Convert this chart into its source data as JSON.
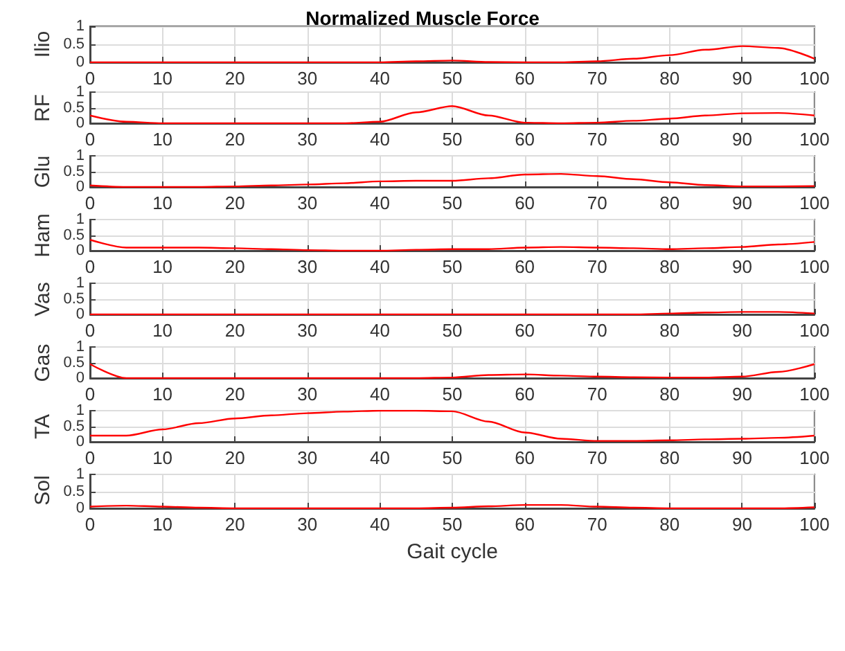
{
  "chart_data": [
    {
      "type": "line",
      "title": "Normalized Muscle Force",
      "ylabel": "Ilio",
      "color": "#ff0000",
      "grid": true,
      "xlim": [
        0,
        100
      ],
      "xticks": [
        0,
        10,
        20,
        30,
        40,
        50,
        60,
        70,
        80,
        90,
        100
      ],
      "ylim": [
        0,
        1
      ],
      "yticks": [
        0,
        0.5,
        1
      ],
      "x": [
        0,
        5,
        10,
        15,
        20,
        25,
        30,
        35,
        40,
        45,
        50,
        55,
        60,
        65,
        70,
        75,
        80,
        85,
        90,
        95,
        100
      ],
      "values": [
        0,
        0,
        0,
        0,
        0,
        0,
        0,
        0,
        0,
        0.03,
        0.05,
        0.01,
        0,
        0,
        0.03,
        0.1,
        0.2,
        0.35,
        0.45,
        0.4,
        0.1
      ]
    },
    {
      "type": "line",
      "ylabel": "RF",
      "color": "#ff0000",
      "grid": true,
      "xlim": [
        0,
        100
      ],
      "xticks": [
        0,
        10,
        20,
        30,
        40,
        50,
        60,
        70,
        80,
        90,
        100
      ],
      "ylim": [
        0,
        1
      ],
      "yticks": [
        0,
        0.5,
        1
      ],
      "x": [
        0,
        5,
        10,
        15,
        20,
        25,
        30,
        35,
        40,
        45,
        50,
        55,
        60,
        65,
        70,
        75,
        80,
        85,
        90,
        95,
        100
      ],
      "values": [
        0.25,
        0.05,
        0,
        0,
        0,
        0,
        0,
        0,
        0.05,
        0.35,
        0.55,
        0.25,
        0.02,
        0,
        0.02,
        0.08,
        0.15,
        0.25,
        0.32,
        0.33,
        0.25
      ]
    },
    {
      "type": "line",
      "ylabel": "Glu",
      "color": "#ff0000",
      "grid": true,
      "xlim": [
        0,
        100
      ],
      "xticks": [
        0,
        10,
        20,
        30,
        40,
        50,
        60,
        70,
        80,
        90,
        100
      ],
      "ylim": [
        0,
        1
      ],
      "yticks": [
        0,
        0.5,
        1
      ],
      "x": [
        0,
        5,
        10,
        15,
        20,
        25,
        30,
        35,
        40,
        45,
        50,
        55,
        60,
        65,
        70,
        75,
        80,
        85,
        90,
        95,
        100
      ],
      "values": [
        0.05,
        0,
        0,
        0,
        0.02,
        0.05,
        0.08,
        0.12,
        0.18,
        0.2,
        0.2,
        0.28,
        0.4,
        0.42,
        0.35,
        0.25,
        0.15,
        0.06,
        0.02,
        0.02,
        0.03
      ]
    },
    {
      "type": "line",
      "ylabel": "Ham",
      "color": "#ff0000",
      "grid": true,
      "xlim": [
        0,
        100
      ],
      "xticks": [
        0,
        10,
        20,
        30,
        40,
        50,
        60,
        70,
        80,
        90,
        100
      ],
      "ylim": [
        0,
        1
      ],
      "yticks": [
        0,
        0.5,
        1
      ],
      "x": [
        0,
        5,
        10,
        15,
        20,
        25,
        30,
        35,
        40,
        45,
        50,
        55,
        60,
        65,
        70,
        75,
        80,
        85,
        90,
        95,
        100
      ],
      "values": [
        0.35,
        0.1,
        0.1,
        0.1,
        0.08,
        0.05,
        0.02,
        0,
        0,
        0.03,
        0.05,
        0.05,
        0.1,
        0.12,
        0.1,
        0.08,
        0.05,
        0.08,
        0.12,
        0.2,
        0.28
      ]
    },
    {
      "type": "line",
      "ylabel": "Vas",
      "color": "#ff0000",
      "grid": true,
      "xlim": [
        0,
        100
      ],
      "xticks": [
        0,
        10,
        20,
        30,
        40,
        50,
        60,
        70,
        80,
        90,
        100
      ],
      "ylim": [
        0,
        1
      ],
      "yticks": [
        0,
        0.5,
        1
      ],
      "x": [
        0,
        5,
        10,
        15,
        20,
        25,
        30,
        35,
        40,
        45,
        50,
        55,
        60,
        65,
        70,
        75,
        80,
        85,
        90,
        95,
        100
      ],
      "values": [
        0,
        0,
        0,
        0,
        0,
        0,
        0,
        0,
        0,
        0,
        0,
        0,
        0,
        0,
        0,
        0,
        0.03,
        0.06,
        0.08,
        0.08,
        0.03
      ]
    },
    {
      "type": "line",
      "ylabel": "Gas",
      "color": "#ff0000",
      "grid": true,
      "xlim": [
        0,
        100
      ],
      "xticks": [
        0,
        10,
        20,
        30,
        40,
        50,
        60,
        70,
        80,
        90,
        100
      ],
      "ylim": [
        0,
        1
      ],
      "yticks": [
        0,
        0.5,
        1
      ],
      "x": [
        0,
        5,
        10,
        15,
        20,
        25,
        30,
        35,
        40,
        45,
        50,
        55,
        60,
        65,
        70,
        75,
        80,
        85,
        90,
        95,
        100
      ],
      "values": [
        0.45,
        0,
        0,
        0,
        0,
        0,
        0,
        0,
        0,
        0,
        0.02,
        0.1,
        0.12,
        0.08,
        0.05,
        0.03,
        0.02,
        0.02,
        0.05,
        0.2,
        0.45
      ]
    },
    {
      "type": "line",
      "ylabel": "TA",
      "color": "#ff0000",
      "grid": true,
      "xlim": [
        0,
        100
      ],
      "xticks": [
        0,
        10,
        20,
        30,
        40,
        50,
        60,
        70,
        80,
        90,
        100
      ],
      "ylim": [
        0,
        1
      ],
      "yticks": [
        0,
        0.5,
        1
      ],
      "x": [
        0,
        5,
        10,
        15,
        20,
        25,
        30,
        35,
        40,
        45,
        50,
        55,
        60,
        65,
        70,
        75,
        80,
        85,
        90,
        95,
        100
      ],
      "values": [
        0.2,
        0.2,
        0.4,
        0.6,
        0.75,
        0.85,
        0.92,
        0.97,
        1,
        1,
        0.98,
        0.65,
        0.3,
        0.1,
        0.03,
        0.03,
        0.05,
        0.08,
        0.1,
        0.13,
        0.2
      ]
    },
    {
      "type": "line",
      "ylabel": "Sol",
      "xlabel": "Gait cycle",
      "color": "#ff0000",
      "grid": true,
      "xlim": [
        0,
        100
      ],
      "xticks": [
        0,
        10,
        20,
        30,
        40,
        50,
        60,
        70,
        80,
        90,
        100
      ],
      "ylim": [
        0,
        1
      ],
      "yticks": [
        0,
        0.5,
        1
      ],
      "x": [
        0,
        5,
        10,
        15,
        20,
        25,
        30,
        35,
        40,
        45,
        50,
        55,
        60,
        65,
        70,
        75,
        80,
        85,
        90,
        95,
        100
      ],
      "values": [
        0.05,
        0.08,
        0.05,
        0.02,
        0,
        0,
        0,
        0,
        0,
        0,
        0.02,
        0.06,
        0.1,
        0.1,
        0.05,
        0.02,
        0,
        0,
        0,
        0,
        0.03
      ]
    }
  ]
}
